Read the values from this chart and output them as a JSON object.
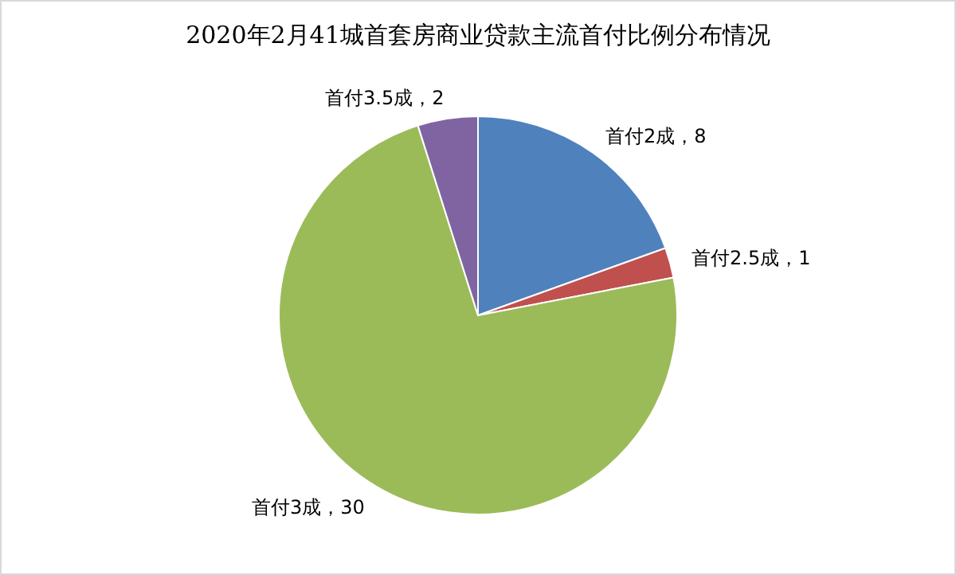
{
  "chart_data": {
    "type": "pie",
    "title": "2020年2月41城首套房商业贷款主流首付比例分布情况",
    "categories": [
      "首付2成",
      "首付2.5成",
      "首付3成",
      "首付3.5成"
    ],
    "values": [
      8,
      1,
      30,
      2
    ],
    "colors": [
      "#4f81bd",
      "#c0504d",
      "#9bbb59",
      "#8064a2"
    ],
    "value_labels": [
      "，8",
      "，1",
      "，30",
      "，2"
    ]
  }
}
